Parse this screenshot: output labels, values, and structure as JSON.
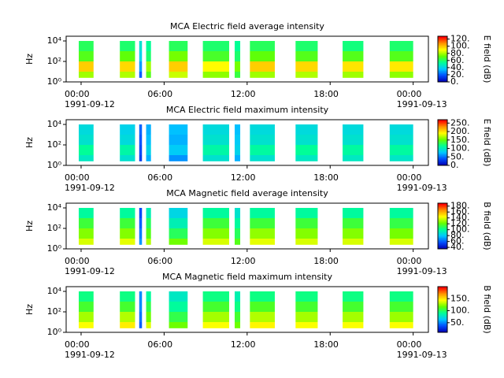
{
  "chart_data": [
    {
      "type": "spectrogram",
      "title": "MCA  Electric field average intensity",
      "ylabel": "Hz",
      "colorbar_label": "E field (dB)",
      "xlim": [
        -1.08,
        25.1
      ],
      "xticks": [
        {
          "value": 0,
          "label": "00:00"
        },
        {
          "value": 6,
          "label": "06:00"
        },
        {
          "value": 12,
          "label": "12:00"
        },
        {
          "value": 18,
          "label": "18:00"
        },
        {
          "value": 24,
          "label": "00:00"
        }
      ],
      "date_labels": [
        "1991-09-12",
        "1991-09-13"
      ],
      "log_y": true,
      "ylim": [
        1,
        29000
      ],
      "yticks": [
        {
          "value": 1,
          "label": "10⁰"
        },
        {
          "value": 100,
          "label": "10²"
        },
        {
          "value": 10000,
          "label": "10⁴"
        }
      ],
      "zlim": [
        0,
        128
      ],
      "zticks": [
        {
          "value": 0,
          "label": "0."
        },
        {
          "value": 20,
          "label": "20."
        },
        {
          "value": 40,
          "label": "40."
        },
        {
          "value": 60,
          "label": "60."
        },
        {
          "value": 80,
          "label": "80."
        },
        {
          "value": 100,
          "label": "100."
        },
        {
          "value": 120,
          "label": "120."
        }
      ],
      "colormap": [
        "#0000b4",
        "#0050ff",
        "#00c8ff",
        "#00ff96",
        "#64ff00",
        "#ffff00",
        "#ff9600",
        "#ff0000"
      ],
      "freq_edges": [
        2.5,
        10,
        100,
        1000,
        10000
      ],
      "segments": [
        [
          -0.17,
          0.9
        ],
        [
          2.8,
          3.9
        ],
        [
          4.2,
          4.4
        ],
        [
          4.7,
          5.05
        ],
        [
          6.35,
          7.7
        ],
        [
          8.8,
          10.7
        ],
        [
          11.1,
          11.5
        ],
        [
          12.2,
          14.0
        ],
        [
          15.5,
          17.1
        ],
        [
          18.9,
          20.4
        ],
        [
          22.3,
          24.0
        ]
      ],
      "z": [
        [
          80,
          100,
          70,
          62
        ],
        [
          82,
          98,
          72,
          60
        ],
        [
          20,
          30,
          40,
          45
        ],
        [
          70,
          80,
          60,
          55
        ],
        [
          85,
          100,
          75,
          62
        ],
        [
          78,
          92,
          68,
          60
        ],
        [
          65,
          75,
          60,
          55
        ],
        [
          80,
          100,
          72,
          62
        ],
        [
          82,
          98,
          70,
          60
        ],
        [
          80,
          96,
          70,
          58
        ],
        [
          78,
          95,
          70,
          60
        ]
      ]
    },
    {
      "type": "spectrogram",
      "title": "MCA  Electric field maximum intensity",
      "ylabel": "Hz",
      "colorbar_label": "E field (dB)",
      "xlim": [
        -1.08,
        25.1
      ],
      "xticks": [
        {
          "value": 0,
          "label": "00:00"
        },
        {
          "value": 6,
          "label": "06:00"
        },
        {
          "value": 12,
          "label": "12:00"
        },
        {
          "value": 18,
          "label": "18:00"
        },
        {
          "value": 24,
          "label": "00:00"
        }
      ],
      "date_labels": [
        "1991-09-12",
        "1991-09-13"
      ],
      "log_y": true,
      "ylim": [
        1,
        29000
      ],
      "yticks": [
        {
          "value": 1,
          "label": "10⁰"
        },
        {
          "value": 100,
          "label": "10²"
        },
        {
          "value": 10000,
          "label": "10⁴"
        }
      ],
      "zlim": [
        0,
        270
      ],
      "zticks": [
        {
          "value": 0,
          "label": "0."
        },
        {
          "value": 50,
          "label": "50."
        },
        {
          "value": 100,
          "label": "100."
        },
        {
          "value": 150,
          "label": "150."
        },
        {
          "value": 200,
          "label": "200."
        },
        {
          "value": 250,
          "label": "250."
        }
      ],
      "colormap": [
        "#0000b4",
        "#0050ff",
        "#00c8ff",
        "#00ff96",
        "#64ff00",
        "#ffff00",
        "#ff9600",
        "#ff0000"
      ],
      "freq_edges": [
        2.5,
        10,
        100,
        1000,
        10000
      ],
      "segments": [
        [
          -0.17,
          0.9
        ],
        [
          2.8,
          3.9
        ],
        [
          4.2,
          4.4
        ],
        [
          4.7,
          5.05
        ],
        [
          6.35,
          7.7
        ],
        [
          8.8,
          10.7
        ],
        [
          11.1,
          11.5
        ],
        [
          12.2,
          14.0
        ],
        [
          15.5,
          17.1
        ],
        [
          18.9,
          20.4
        ],
        [
          22.3,
          24.0
        ]
      ],
      "z": [
        [
          100,
          115,
          95,
          90
        ],
        [
          95,
          110,
          90,
          85
        ],
        [
          30,
          35,
          40,
          45
        ],
        [
          70,
          85,
          75,
          70
        ],
        [
          60,
          80,
          70,
          75
        ],
        [
          95,
          110,
          95,
          90
        ],
        [
          70,
          85,
          80,
          75
        ],
        [
          95,
          112,
          95,
          90
        ],
        [
          100,
          115,
          95,
          90
        ],
        [
          100,
          112,
          95,
          90
        ],
        [
          98,
          112,
          95,
          90
        ]
      ]
    },
    {
      "type": "spectrogram",
      "title": "MCA  Magnetic field average intensity",
      "ylabel": "Hz",
      "colorbar_label": "B field (dB)",
      "xlim": [
        -1.08,
        25.1
      ],
      "xticks": [
        {
          "value": 0,
          "label": "00:00"
        },
        {
          "value": 6,
          "label": "06:00"
        },
        {
          "value": 12,
          "label": "12:00"
        },
        {
          "value": 18,
          "label": "18:00"
        },
        {
          "value": 24,
          "label": "00:00"
        }
      ],
      "date_labels": [
        "1991-09-12",
        "1991-09-13"
      ],
      "log_y": true,
      "ylim": [
        1,
        29000
      ],
      "yticks": [
        {
          "value": 1,
          "label": "10⁰"
        },
        {
          "value": 100,
          "label": "10²"
        },
        {
          "value": 10000,
          "label": "10⁴"
        }
      ],
      "zlim": [
        35,
        190
      ],
      "zticks": [
        {
          "value": 40,
          "label": "40."
        },
        {
          "value": 60,
          "label": "60."
        },
        {
          "value": 80,
          "label": "80."
        },
        {
          "value": 100,
          "label": "100."
        },
        {
          "value": 120,
          "label": "120."
        },
        {
          "value": 140,
          "label": "140."
        },
        {
          "value": 160,
          "label": "160."
        },
        {
          "value": 180,
          "label": "180."
        }
      ],
      "colormap": [
        "#0000b4",
        "#0050ff",
        "#00c8ff",
        "#00ff96",
        "#64ff00",
        "#ffff00",
        "#ff9600",
        "#ff0000"
      ],
      "freq_edges": [
        2.5,
        10,
        100,
        1000,
        10000
      ],
      "segments": [
        [
          -0.17,
          0.9
        ],
        [
          2.8,
          3.9
        ],
        [
          4.2,
          4.4
        ],
        [
          4.7,
          5.05
        ],
        [
          6.35,
          7.7
        ],
        [
          8.8,
          10.7
        ],
        [
          11.1,
          11.5
        ],
        [
          12.2,
          14.0
        ],
        [
          15.5,
          17.1
        ],
        [
          18.9,
          20.4
        ],
        [
          22.3,
          24.0
        ]
      ],
      "z": [
        [
          140,
          128,
          115,
          100
        ],
        [
          142,
          128,
          115,
          100
        ],
        [
          70,
          65,
          60,
          55
        ],
        [
          135,
          120,
          110,
          95
        ],
        [
          125,
          110,
          95,
          85
        ],
        [
          140,
          128,
          115,
          100
        ],
        [
          120,
          110,
          100,
          90
        ],
        [
          142,
          130,
          115,
          100
        ],
        [
          140,
          128,
          115,
          100
        ],
        [
          140,
          128,
          115,
          100
        ],
        [
          140,
          126,
          113,
          100
        ]
      ]
    },
    {
      "type": "spectrogram",
      "title": "MCA  Magnetic field maximum intensity",
      "ylabel": "Hz",
      "colorbar_label": "B field (dB)",
      "xlim": [
        -1.08,
        25.1
      ],
      "xticks": [
        {
          "value": 0,
          "label": "00:00"
        },
        {
          "value": 6,
          "label": "06:00"
        },
        {
          "value": 12,
          "label": "12:00"
        },
        {
          "value": 18,
          "label": "18:00"
        },
        {
          "value": 24,
          "label": "00:00"
        }
      ],
      "date_labels": [
        "1991-09-12",
        "1991-09-13"
      ],
      "log_y": true,
      "ylim": [
        1,
        29000
      ],
      "yticks": [
        {
          "value": 1,
          "label": "10⁰"
        },
        {
          "value": 100,
          "label": "10²"
        },
        {
          "value": 10000,
          "label": "10⁴"
        }
      ],
      "zlim": [
        10,
        200
      ],
      "zticks": [
        {
          "value": 50,
          "label": "50."
        },
        {
          "value": 100,
          "label": "100."
        },
        {
          "value": 150,
          "label": "150."
        }
      ],
      "colormap": [
        "#0000b4",
        "#0050ff",
        "#00c8ff",
        "#00ff96",
        "#64ff00",
        "#ffff00",
        "#ff9600",
        "#ff0000"
      ],
      "freq_edges": [
        2.5,
        10,
        100,
        1000,
        10000
      ],
      "segments": [
        [
          -0.17,
          0.9
        ],
        [
          2.8,
          3.9
        ],
        [
          4.2,
          4.4
        ],
        [
          4.7,
          5.05
        ],
        [
          6.35,
          7.7
        ],
        [
          8.8,
          10.7
        ],
        [
          11.1,
          11.5
        ],
        [
          12.2,
          14.0
        ],
        [
          15.5,
          17.1
        ],
        [
          18.9,
          20.4
        ],
        [
          22.3,
          24.0
        ]
      ],
      "z": [
        [
          145,
          130,
          110,
          95
        ],
        [
          150,
          132,
          110,
          95
        ],
        [
          40,
          45,
          50,
          50
        ],
        [
          140,
          120,
          105,
          90
        ],
        [
          120,
          105,
          90,
          80
        ],
        [
          145,
          130,
          110,
          95
        ],
        [
          120,
          110,
          95,
          85
        ],
        [
          148,
          132,
          112,
          95
        ],
        [
          145,
          130,
          110,
          95
        ],
        [
          145,
          130,
          110,
          95
        ],
        [
          145,
          128,
          110,
          95
        ]
      ]
    }
  ]
}
